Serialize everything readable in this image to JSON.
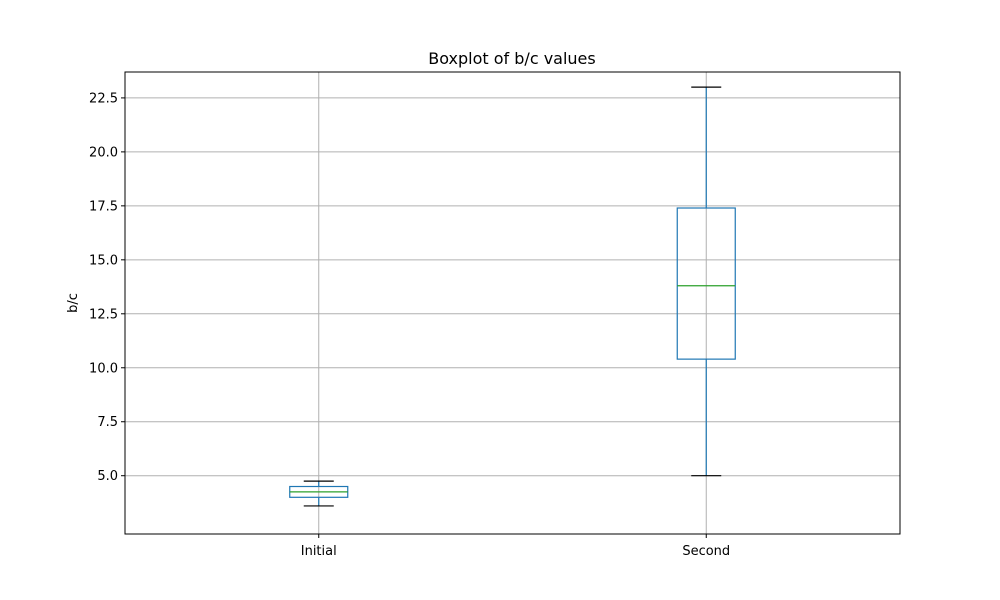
{
  "chart_data": {
    "type": "boxplot",
    "title": "Boxplot of b/c values",
    "xlabel": "",
    "ylabel": "b/c",
    "categories": [
      "Initial",
      "Second"
    ],
    "boxes": [
      {
        "label": "Initial",
        "whisker_low": 3.6,
        "q1": 4.0,
        "median": 4.25,
        "q3": 4.5,
        "whisker_high": 4.75
      },
      {
        "label": "Second",
        "whisker_low": 5.0,
        "q1": 10.4,
        "median": 13.8,
        "q3": 17.4,
        "whisker_high": 23.0
      }
    ],
    "ylim": [
      2.3,
      23.7
    ],
    "yticks": [
      5.0,
      7.5,
      10.0,
      12.5,
      15.0,
      17.5,
      20.0,
      22.5
    ],
    "ytick_labels": [
      "5.0",
      "7.5",
      "10.0",
      "12.5",
      "15.0",
      "17.5",
      "20.0",
      "22.5"
    ],
    "grid": true,
    "colors": {
      "box": "#1f77b4",
      "median": "#2ca02c",
      "cap": "#000000",
      "grid": "#b0b0b0"
    }
  }
}
